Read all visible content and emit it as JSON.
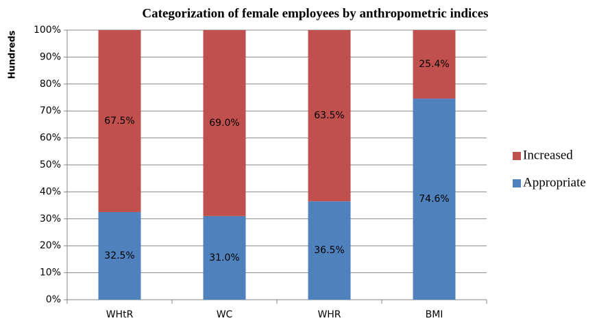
{
  "chart_data": {
    "type": "stacked_bar",
    "title": "Categorization of female employees by anthropometric indices",
    "y_axis_label": "Hundreds",
    "categories": [
      "WHtR",
      "WC",
      "WHR",
      "BMI"
    ],
    "series": [
      {
        "name": "Appropriate",
        "color": "#4f81bd",
        "values": [
          32.5,
          31.0,
          36.5,
          74.6
        ],
        "value_labels": [
          "32.5%",
          "31.0%",
          "36.5%",
          "74.6%"
        ]
      },
      {
        "name": "Increased",
        "color": "#c0504d",
        "values": [
          67.5,
          69.0,
          63.5,
          25.4
        ],
        "value_labels": [
          "67.5%",
          "69.0%",
          "63.5%",
          "25.4%"
        ]
      }
    ],
    "ylim": [
      0,
      100
    ],
    "yticks": [
      {
        "value": 0,
        "label": "0%"
      },
      {
        "value": 10,
        "label": "10%"
      },
      {
        "value": 20,
        "label": "20%"
      },
      {
        "value": 30,
        "label": "30%"
      },
      {
        "value": 40,
        "label": "40%"
      },
      {
        "value": 50,
        "label": "50%"
      },
      {
        "value": 60,
        "label": "60%"
      },
      {
        "value": 70,
        "label": "70%"
      },
      {
        "value": 80,
        "label": "80%"
      },
      {
        "value": 90,
        "label": "90%"
      },
      {
        "value": 100,
        "label": "100%"
      }
    ],
    "grid": true,
    "legend": "right"
  }
}
